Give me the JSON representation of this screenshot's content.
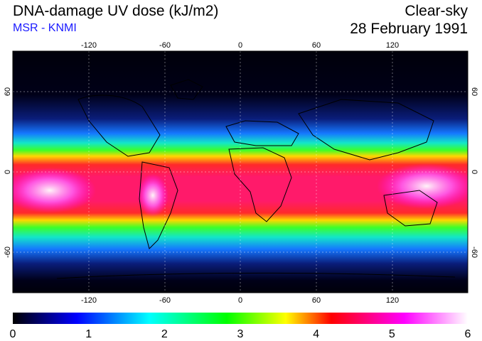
{
  "header": {
    "title": "DNA-damage UV dose (kJ/m2)",
    "subtitle": "MSR - KNMI",
    "mode": "Clear-sky",
    "date": "28 February 1991"
  },
  "map": {
    "lon_ticks": [
      "-120",
      "-60",
      "0",
      "60",
      "120"
    ],
    "lat_ticks": [
      "60",
      "0",
      "-60"
    ],
    "lon_values": [
      -120,
      -60,
      0,
      60,
      120
    ],
    "lat_values": [
      60,
      0,
      -60
    ]
  },
  "colorbar": {
    "tick_labels": [
      "0",
      "1",
      "2",
      "3",
      "4",
      "5",
      "6"
    ],
    "colors": [
      "#000000",
      "#0000ff",
      "#00ffff",
      "#00ff00",
      "#ffff00",
      "#ff0000",
      "#ff00ff",
      "#ffffff"
    ]
  }
}
